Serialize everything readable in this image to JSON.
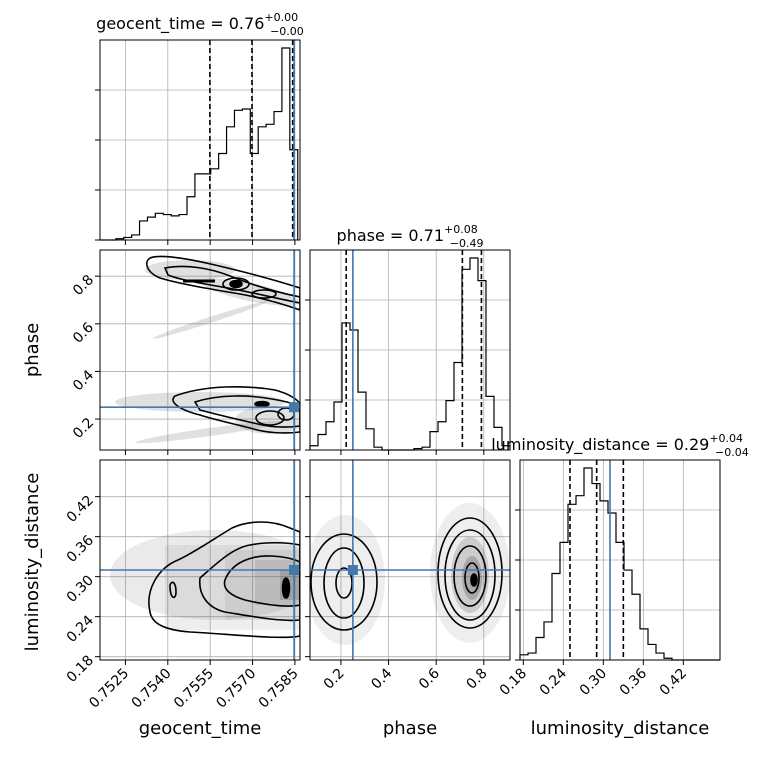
{
  "chart_data": {
    "type": "corner",
    "parameters": [
      "geocent_time",
      "phase",
      "luminosity_distance"
    ],
    "axis_labels": [
      "geocent_time",
      "phase",
      "luminosity_distance"
    ],
    "titles": [
      {
        "param": "geocent_time",
        "name": "geocent_time",
        "value": "0.76",
        "plus": "+0.00",
        "minus": "−0.00"
      },
      {
        "param": "phase",
        "name": "phase",
        "value": "0.71",
        "plus": "+0.08",
        "minus": "−0.49"
      },
      {
        "param": "luminosity_distance",
        "name": "luminosity_distance",
        "value": "0.29",
        "plus": "+0.04",
        "minus": "−0.04"
      }
    ],
    "ranges": {
      "geocent_time": [
        0.7516,
        0.75868
      ],
      "phase": [
        0.07,
        0.91
      ],
      "luminosity_distance": [
        0.175,
        0.475
      ]
    },
    "ticks": {
      "geocent_time": [
        0.7525,
        0.754,
        0.7555,
        0.757,
        0.7585
      ],
      "phase": [
        0.2,
        0.4,
        0.6,
        0.8
      ],
      "luminosity_distance": [
        0.18,
        0.24,
        0.3,
        0.36,
        0.42
      ]
    },
    "tick_labels": {
      "geocent_time": [
        "0.7525",
        "0.7540",
        "0.7555",
        "0.7570",
        "0.7585"
      ],
      "phase_x": [
        "0.2",
        "0.4",
        "0.6",
        "0.8"
      ],
      "phase_y": [
        "0.2",
        "0.4",
        "0.6",
        "0.8"
      ],
      "luminosity_distance_x": [
        "0.18",
        "0.24",
        "0.30",
        "0.36",
        "0.42"
      ],
      "luminosity_distance_y": [
        "0.18",
        "0.24",
        "0.30",
        "0.36",
        "0.42"
      ]
    },
    "truths": {
      "geocent_time": 0.75847,
      "phase": 0.25,
      "luminosity_distance": 0.31
    },
    "quantiles": {
      "geocent_time": [
        0.75549,
        0.75698,
        0.75842
      ],
      "phase": [
        0.222,
        0.71,
        0.79
      ],
      "luminosity_distance": [
        0.25,
        0.29,
        0.33
      ]
    },
    "histograms": {
      "geocent_time": {
        "edges": [
          0.7516,
          0.75188,
          0.75216,
          0.75244,
          0.75272,
          0.753,
          0.75328,
          0.75356,
          0.75384,
          0.75412,
          0.7544,
          0.75468,
          0.75496,
          0.75524,
          0.75552,
          0.7558,
          0.75608,
          0.75636,
          0.75664,
          0.75692,
          0.7572,
          0.75748,
          0.75776,
          0.75804,
          0.75832,
          0.7586
        ],
        "counts": [
          0,
          0,
          1,
          2,
          4,
          15,
          18,
          21,
          20,
          19,
          20,
          34,
          52,
          52,
          56,
          68,
          89,
          102,
          103,
          68,
          89,
          91,
          101,
          151,
          71
        ]
      },
      "phase": {
        "edges": [
          0.07,
          0.1036,
          0.1372,
          0.1708,
          0.2044,
          0.238,
          0.2716,
          0.3052,
          0.3388,
          0.3724,
          0.406,
          0.4396,
          0.4732,
          0.5068,
          0.5404,
          0.574,
          0.6076,
          0.6412,
          0.6748,
          0.7084,
          0.742,
          0.7756,
          0.8092,
          0.8428,
          0.8764,
          0.91
        ],
        "counts": [
          3,
          11,
          20,
          34,
          90,
          85,
          41,
          15,
          2,
          0,
          0,
          0,
          0,
          1,
          2,
          13,
          20,
          35,
          62,
          128,
          136,
          120,
          38,
          16,
          3
        ]
      },
      "luminosity_distance": {
        "edges": [
          0.175,
          0.187,
          0.199,
          0.211,
          0.223,
          0.235,
          0.247,
          0.259,
          0.271,
          0.283,
          0.295,
          0.307,
          0.319,
          0.331,
          0.343,
          0.355,
          0.367,
          0.379,
          0.391,
          0.403,
          0.415,
          0.427,
          0.439,
          0.451,
          0.463,
          0.475
        ],
        "counts": [
          3,
          4,
          13,
          22,
          50,
          68,
          90,
          95,
          111,
          102,
          92,
          85,
          68,
          52,
          38,
          18,
          9,
          4,
          1,
          0,
          0,
          0,
          0,
          0,
          0
        ]
      }
    },
    "colors": {
      "truth": "#4477aa",
      "line": "#000000",
      "grid": "#b0b0b0"
    }
  }
}
